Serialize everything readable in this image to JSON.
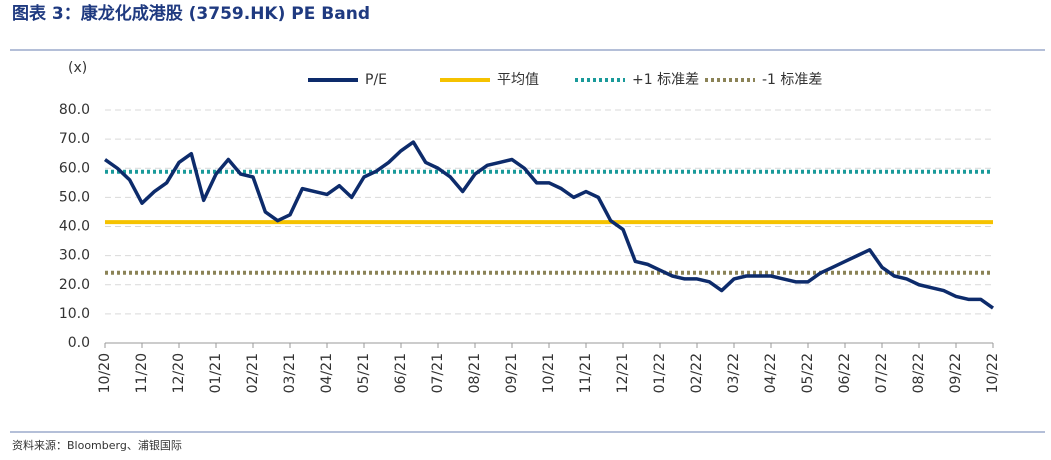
{
  "chart_data": {
    "type": "line",
    "title": "图表 3：康龙化成港股 (3759.HK) PE Band",
    "y_label": "(x)",
    "source": "资料来源：Bloomberg、浦银国际",
    "categories": [
      "10/20",
      null,
      null,
      "11/20",
      null,
      null,
      "12/20",
      null,
      null,
      "01/21",
      null,
      null,
      "02/21",
      null,
      null,
      "03/21",
      null,
      null,
      "04/21",
      null,
      null,
      "05/21",
      null,
      null,
      "06/21",
      null,
      null,
      "07/21",
      null,
      null,
      "08/21",
      null,
      null,
      "09/21",
      null,
      null,
      "10/21",
      null,
      null,
      "11/21",
      null,
      null,
      "12/21",
      null,
      null,
      "01/22",
      null,
      null,
      "02/22",
      null,
      null,
      "03/22",
      null,
      null,
      "04/22",
      null,
      null,
      "05/22",
      null,
      null,
      "06/22",
      null,
      null,
      "07/22",
      null,
      null,
      "08/22",
      null,
      null,
      "09/22",
      null,
      null,
      "10/22"
    ],
    "series": [
      {
        "name": "P/E",
        "color": "#0d2b6b",
        "values": [
          63,
          60,
          56,
          48,
          52,
          55,
          62,
          65,
          49,
          58,
          63,
          58,
          57,
          45,
          42,
          44,
          53,
          52,
          51,
          54,
          50,
          57,
          59,
          62,
          66,
          69,
          62,
          60,
          57,
          52,
          58,
          61,
          62,
          63,
          60,
          55,
          55,
          53,
          50,
          52,
          50,
          42,
          39,
          28,
          27,
          25,
          23,
          22,
          22,
          21,
          18,
          22,
          23,
          23,
          23,
          22,
          21,
          21,
          24,
          26,
          28,
          30,
          32,
          26,
          23,
          22,
          20,
          19,
          18,
          16,
          15,
          15,
          12
        ]
      }
    ],
    "reference_lines": [
      {
        "name": "平均值",
        "value": 41.5,
        "color": "#f5c200",
        "style": "solid"
      },
      {
        "name": "+1 标准差",
        "value": 58.8,
        "color": "#1a9a9a",
        "style": "dotted"
      },
      {
        "name": "-1 标准差",
        "value": 24.1,
        "color": "#8b8357",
        "style": "dotted"
      }
    ],
    "ylim": [
      0,
      80
    ],
    "yticks": [
      {
        "value": 0,
        "label": "0.0"
      },
      {
        "value": 10,
        "label": "10.0"
      },
      {
        "value": 20,
        "label": "20.0"
      },
      {
        "value": 30,
        "label": "30.0"
      },
      {
        "value": 40,
        "label": "40.0"
      },
      {
        "value": 50,
        "label": "50.0"
      },
      {
        "value": 60,
        "label": "60.0"
      },
      {
        "value": 70,
        "label": "70.0"
      },
      {
        "value": 80,
        "label": "80.0"
      }
    ],
    "grid": true
  }
}
